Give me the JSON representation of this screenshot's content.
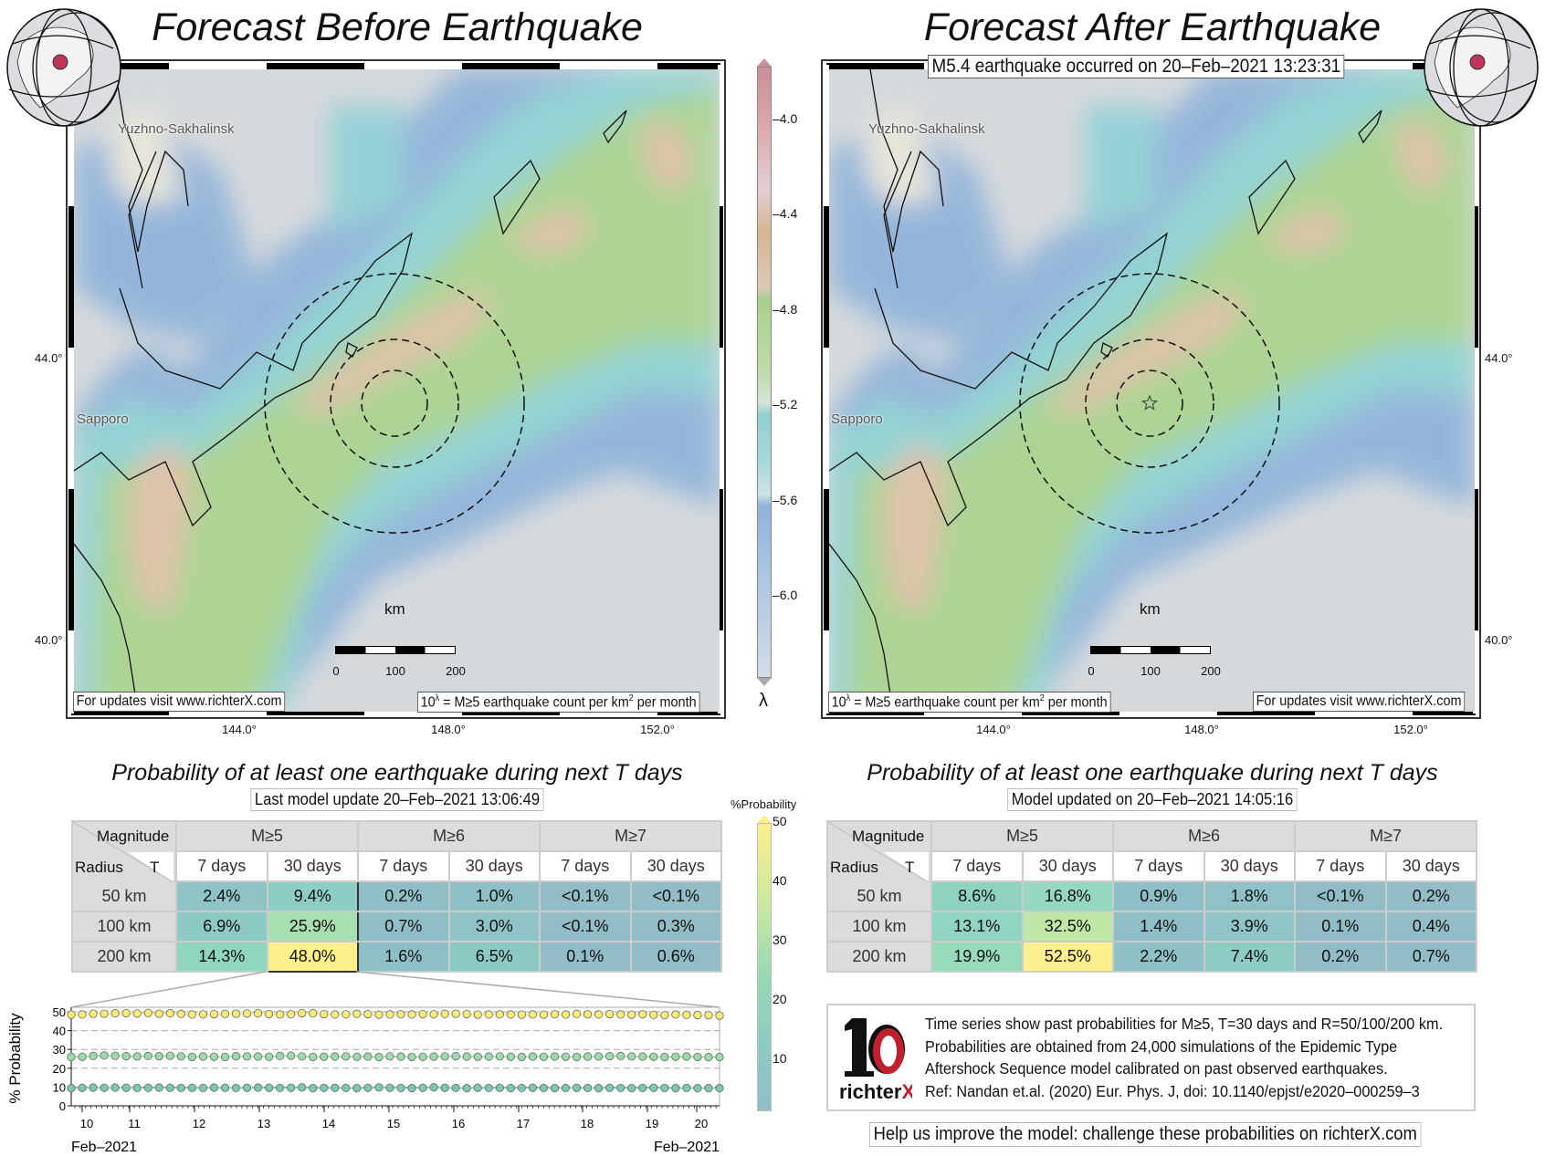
{
  "left_panel": {
    "title": "Forecast Before Earthquake",
    "cities": [
      "Yuzhno-Sakhalinsk",
      "Sapporo"
    ],
    "lat_labels": [
      "44.0°",
      "40.0°"
    ],
    "lon_labels": [
      "144.0°",
      "148.0°",
      "152.0°"
    ],
    "scale_unit": "km",
    "scale_labels": [
      "0",
      "100",
      "200"
    ],
    "updates_note": "For updates visit www.richterX.com",
    "legend_note_pre": "10",
    "legend_note_sup": "λ",
    "legend_note_mid": " = M≥5 earthquake count per km",
    "legend_note_sup2": "2",
    "legend_note_post": " per month",
    "prob_title": "Probability of at least one earthquake during next T days",
    "update_label": "Last model update 20–Feb–2021 13:06:49",
    "table": {
      "corner_top": "Magnitude",
      "corner_bottom_left": "Radius",
      "corner_bottom_right": "T",
      "magnitudes": [
        "M≥5",
        "M≥6",
        "M≥7"
      ],
      "periods": [
        "7 days",
        "30 days",
        "7 days",
        "30 days",
        "7 days",
        "30 days"
      ],
      "rows": [
        {
          "radius": "50 km",
          "values": [
            "2.4%",
            "9.4%",
            "0.2%",
            "1.0%",
            "<0.1%",
            "<0.1%"
          ],
          "colors": [
            "#8fc3c6",
            "#8dcdc3",
            "#8fbec6",
            "#8fc0c6",
            "#92bdc6",
            "#92bdc6"
          ]
        },
        {
          "radius": "100 km",
          "values": [
            "6.9%",
            "25.9%",
            "0.7%",
            "3.0%",
            "<0.1%",
            "0.3%"
          ],
          "colors": [
            "#8dcac3",
            "#a6e0b0",
            "#8fbec6",
            "#8fc3c6",
            "#92bdc6",
            "#92bdc6"
          ]
        },
        {
          "radius": "200 km",
          "values": [
            "14.3%",
            "48.0%",
            "1.6%",
            "6.5%",
            "0.1%",
            "0.6%"
          ],
          "colors": [
            "#90d5c0",
            "#fcef8c",
            "#8fbfc6",
            "#8dc9c3",
            "#92bdc6",
            "#92bdc6"
          ]
        }
      ]
    },
    "timeseries": {
      "ylabel": "% Probability",
      "yticks": [
        "0",
        "10",
        "20",
        "30",
        "40",
        "50"
      ],
      "xticks": [
        "10",
        "11",
        "12",
        "13",
        "14",
        "15",
        "16",
        "17",
        "18",
        "19",
        "20"
      ],
      "start_label": "Feb–2021",
      "end_label": "Feb–2021",
      "series": [
        {
          "radius": "200 km",
          "color": "#f7ec7a",
          "values": [
            48.5,
            48.6,
            49,
            49,
            49.2,
            49.3,
            49.1,
            49.4,
            49,
            49.2,
            48.9,
            48.6,
            48.7,
            48.8,
            48.9,
            49,
            49.1,
            49.2,
            48.8,
            48.6,
            48.7,
            49.3,
            49.2,
            48.8,
            48.6,
            48.7,
            48.9,
            48.8,
            48.5,
            48.6,
            48.7,
            48.6,
            48.8,
            48.7,
            48.9,
            49,
            48.8,
            48.5,
            48.6,
            48.7,
            48.6,
            48.5,
            48.6,
            48.5,
            48.7,
            48.6,
            48.9,
            48.7,
            48.6,
            48.8,
            48.6,
            48.5,
            48.7,
            48.4,
            48.2,
            48.6,
            48.4,
            48.3,
            48.2,
            48
          ]
        },
        {
          "radius": "100 km",
          "color": "#9cdca9",
          "values": [
            26,
            26.1,
            26.5,
            26.8,
            26.6,
            26.4,
            26.3,
            26.5,
            26.4,
            26.6,
            26.3,
            26,
            26.2,
            26.1,
            26,
            26.4,
            26.3,
            26.2,
            26.1,
            26.5,
            26.7,
            26.3,
            26,
            26.1,
            26.2,
            26.3,
            26.1,
            26.2,
            26,
            26.3,
            26.2,
            26,
            26.1,
            26.2,
            26.3,
            26.4,
            26.2,
            26.1,
            26.2,
            26.3,
            26.1,
            26,
            26.2,
            26.1,
            26.2,
            26.1,
            26,
            26.2,
            26.3,
            26.4,
            26.5,
            26.3,
            26.2,
            26.1,
            26,
            26.1,
            26.2,
            26,
            25.9,
            25.9
          ]
        },
        {
          "radius": "50 km",
          "color": "#7fc7b5",
          "values": [
            9.4,
            9.6,
            9.7,
            9.6,
            9.7,
            9.6,
            9.5,
            9.6,
            9.7,
            9.6,
            9.5,
            9.6,
            9.5,
            9.7,
            9.6,
            9.5,
            9.6,
            9.7,
            9.6,
            9.5,
            9.6,
            9.8,
            9.4,
            9.5,
            9.6,
            9.5,
            9.4,
            9.6,
            9.8,
            9.6,
            9.5,
            9.4,
            9.6,
            9.9,
            9.6,
            9.5,
            9.4,
            9.6,
            9.5,
            9.6,
            9.4,
            9.5,
            9.6,
            9.5,
            9.4,
            9.5,
            9.6,
            9.5,
            9.4,
            9.6,
            9.5,
            9.4,
            9.5,
            9.6,
            9.5,
            9.4,
            9.5,
            9.4,
            9.4,
            9.4
          ]
        }
      ]
    }
  },
  "right_panel": {
    "title": "Forecast After Earthquake",
    "event_label": "M5.4 earthquake occurred on 20–Feb–2021 13:23:31",
    "cities": [
      "Yuzhno-Sakhalinsk",
      "Sapporo"
    ],
    "lat_labels": [
      "44.0°",
      "40.0°"
    ],
    "lon_labels": [
      "144.0°",
      "148.0°",
      "152.0°"
    ],
    "scale_unit": "km",
    "scale_labels": [
      "0",
      "100",
      "200"
    ],
    "updates_note": "For updates visit www.richterX.com",
    "legend_note_pre": "10",
    "legend_note_sup": "λ",
    "legend_note_mid": " = M≥5 earthquake count per km",
    "legend_note_sup2": "2",
    "legend_note_post": " per month",
    "prob_title": "Probability of at least one earthquake during next T days",
    "update_label": "Model updated on 20–Feb–2021 14:05:16",
    "table": {
      "corner_top": "Magnitude",
      "corner_bottom_left": "Radius",
      "corner_bottom_right": "T",
      "magnitudes": [
        "M≥5",
        "M≥6",
        "M≥7"
      ],
      "periods": [
        "7 days",
        "30 days",
        "7 days",
        "30 days",
        "7 days",
        "30 days"
      ],
      "rows": [
        {
          "radius": "50 km",
          "values": [
            "8.6%",
            "16.8%",
            "0.9%",
            "1.8%",
            "<0.1%",
            "0.2%"
          ],
          "colors": [
            "#8fd2c2",
            "#96d8bf",
            "#8fbfc6",
            "#8fc1c6",
            "#92bdc6",
            "#92bdc6"
          ]
        },
        {
          "radius": "100 km",
          "values": [
            "13.1%",
            "32.5%",
            "1.4%",
            "3.9%",
            "0.1%",
            "0.4%"
          ],
          "colors": [
            "#90d4c3",
            "#bfe8a6",
            "#8fbfc6",
            "#8fc5c6",
            "#92bdc6",
            "#92bdc6"
          ]
        },
        {
          "radius": "200 km",
          "values": [
            "19.9%",
            "52.5%",
            "2.2%",
            "7.4%",
            "0.2%",
            "0.7%"
          ],
          "colors": [
            "#98dabc",
            "#fdef90",
            "#8fc0c6",
            "#8dcbc3",
            "#92bdc6",
            "#92bdc6"
          ]
        }
      ]
    },
    "info_lines": [
      "Time series show past probabilities for M≥5, T=30 days and R=50/100/200 km.",
      "Probabilities are obtained from 24,000 simulations of the Epidemic Type",
      "Aftershock Sequence model calibrated on past observed earthquakes.",
      "Ref: Nandan et.al. (2020) Eur. Phys. J, doi: 10.1140/epjst/e2020–000259–3"
    ],
    "logo_text": "richterX",
    "help_text": "Help us improve the model: challenge these probabilities on richterX.com"
  },
  "rate_colorbar": {
    "ticks": [
      "–4.0",
      "–4.4",
      "–4.8",
      "–5.2",
      "–5.6",
      "–6.0"
    ],
    "symbol": "λ"
  },
  "prob_colorbar": {
    "label": "%Probability",
    "ticks": [
      "50",
      "40",
      "30",
      "20",
      "10"
    ]
  },
  "colors": {
    "epicenter_dot": "#c0365a",
    "logo_red": "#c0202f",
    "ocean_gray": "#d5d9dc"
  }
}
